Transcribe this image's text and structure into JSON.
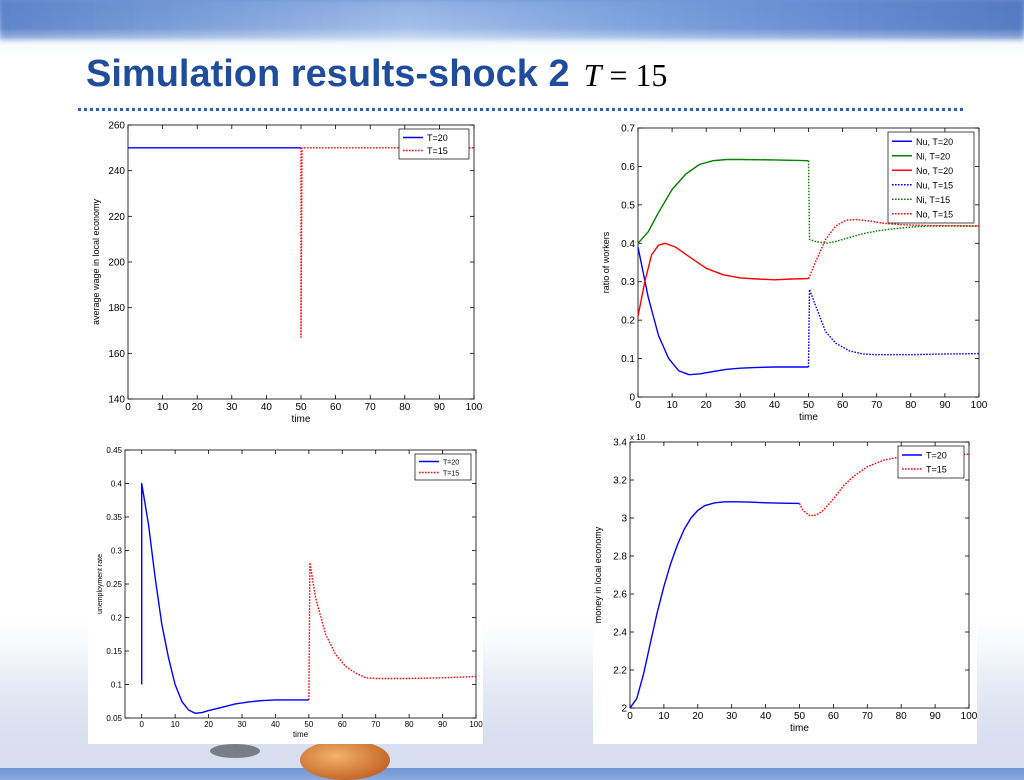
{
  "slide": {
    "title": "Simulation results-shock 2",
    "formula_var": "T",
    "formula_rest": " = 15"
  },
  "colors": {
    "title": "#1f4d9c",
    "blue": "#0000ff",
    "red": "#ff0000",
    "green": "#008000"
  },
  "chart_data": [
    {
      "id": "wage",
      "type": "line",
      "xlabel": "time",
      "ylabel": "average wage in local economy",
      "xlim": [
        0,
        100
      ],
      "ylim": [
        140,
        260
      ],
      "xticks": [
        0,
        10,
        20,
        30,
        40,
        50,
        60,
        70,
        80,
        90,
        100
      ],
      "yticks": [
        140,
        160,
        180,
        200,
        220,
        240,
        260
      ],
      "x_scale": 1,
      "legend_position": "top-right",
      "series": [
        {
          "name": "T=20",
          "color": "#0000ff",
          "dash": false,
          "points": [
            [
              0,
              250
            ],
            [
              50,
              250
            ]
          ]
        },
        {
          "name": "T=15",
          "color": "#ff0000",
          "dash": true,
          "points": [
            [
              50,
              250
            ],
            [
              50,
              167
            ],
            [
              50.3,
              250
            ],
            [
              100,
              250
            ]
          ]
        }
      ]
    },
    {
      "id": "ratios",
      "type": "line",
      "xlabel": "time",
      "ylabel": "ratio of workers",
      "xlim": [
        0,
        100
      ],
      "ylim": [
        0,
        0.7
      ],
      "xticks": [
        0,
        10,
        20,
        30,
        40,
        50,
        60,
        70,
        80,
        90,
        100
      ],
      "yticks": [
        0,
        0.1,
        0.2,
        0.3,
        0.4,
        0.5,
        0.6,
        0.7
      ],
      "x_scale": 1,
      "legend_position": "top-right",
      "series": [
        {
          "name": "Nu, T=20",
          "color": "#0000ff",
          "dash": false,
          "points": [
            [
              0,
              0.39
            ],
            [
              3,
              0.26
            ],
            [
              6,
              0.16
            ],
            [
              9,
              0.1
            ],
            [
              12,
              0.068
            ],
            [
              15,
              0.058
            ],
            [
              18,
              0.06
            ],
            [
              22,
              0.066
            ],
            [
              26,
              0.072
            ],
            [
              30,
              0.075
            ],
            [
              35,
              0.077
            ],
            [
              40,
              0.078
            ],
            [
              50,
              0.078
            ]
          ]
        },
        {
          "name": "Ni, T=20",
          "color": "#008000",
          "dash": false,
          "points": [
            [
              0,
              0.4
            ],
            [
              3,
              0.43
            ],
            [
              6,
              0.48
            ],
            [
              10,
              0.54
            ],
            [
              14,
              0.58
            ],
            [
              18,
              0.605
            ],
            [
              22,
              0.615
            ],
            [
              26,
              0.618
            ],
            [
              30,
              0.618
            ],
            [
              40,
              0.617
            ],
            [
              50,
              0.615
            ]
          ]
        },
        {
          "name": "No, T=20",
          "color": "#ff0000",
          "dash": false,
          "points": [
            [
              0,
              0.21
            ],
            [
              2,
              0.3
            ],
            [
              4,
              0.37
            ],
            [
              6,
              0.395
            ],
            [
              8,
              0.4
            ],
            [
              11,
              0.39
            ],
            [
              15,
              0.365
            ],
            [
              20,
              0.335
            ],
            [
              25,
              0.318
            ],
            [
              30,
              0.31
            ],
            [
              35,
              0.307
            ],
            [
              40,
              0.305
            ],
            [
              45,
              0.307
            ],
            [
              50,
              0.308
            ]
          ]
        },
        {
          "name": "Nu, T=15",
          "color": "#0000ff",
          "dash": true,
          "points": [
            [
              50,
              0.078
            ],
            [
              50.3,
              0.28
            ],
            [
              52,
              0.24
            ],
            [
              55,
              0.17
            ],
            [
              58,
              0.14
            ],
            [
              62,
              0.12
            ],
            [
              66,
              0.112
            ],
            [
              70,
              0.11
            ],
            [
              80,
              0.11
            ],
            [
              90,
              0.112
            ],
            [
              100,
              0.113
            ]
          ]
        },
        {
          "name": "Ni, T=15",
          "color": "#008000",
          "dash": true,
          "points": [
            [
              50,
              0.615
            ],
            [
              50.3,
              0.41
            ],
            [
              52,
              0.405
            ],
            [
              55,
              0.4
            ],
            [
              58,
              0.405
            ],
            [
              62,
              0.415
            ],
            [
              66,
              0.425
            ],
            [
              70,
              0.432
            ],
            [
              75,
              0.438
            ],
            [
              80,
              0.442
            ],
            [
              85,
              0.445
            ],
            [
              90,
              0.445
            ],
            [
              100,
              0.445
            ]
          ]
        },
        {
          "name": "No, T=15",
          "color": "#ff0000",
          "dash": true,
          "points": [
            [
              50,
              0.308
            ],
            [
              52,
              0.35
            ],
            [
              55,
              0.41
            ],
            [
              58,
              0.445
            ],
            [
              61,
              0.46
            ],
            [
              64,
              0.462
            ],
            [
              68,
              0.458
            ],
            [
              72,
              0.452
            ],
            [
              78,
              0.448
            ],
            [
              85,
              0.446
            ],
            [
              100,
              0.445
            ]
          ]
        }
      ]
    },
    {
      "id": "unemployment",
      "type": "line",
      "xlabel": "time",
      "ylabel": "unemployment rate",
      "xlim": [
        -5,
        100
      ],
      "ylim": [
        0.05,
        0.45
      ],
      "xticks": [
        0,
        10,
        20,
        30,
        40,
        50,
        60,
        70,
        80,
        90,
        100
      ],
      "yticks": [
        0.05,
        0.1,
        0.15,
        0.2,
        0.25,
        0.3,
        0.35,
        0.4,
        0.45
      ],
      "x_scale": 1,
      "legend_position": "top-right",
      "series": [
        {
          "name": "T=20",
          "color": "#0000ff",
          "dash": false,
          "points": [
            [
              0,
              0.1
            ],
            [
              0,
              0.4
            ],
            [
              2,
              0.34
            ],
            [
              4,
              0.26
            ],
            [
              6,
              0.19
            ],
            [
              8,
              0.14
            ],
            [
              10,
              0.1
            ],
            [
              12,
              0.075
            ],
            [
              14,
              0.062
            ],
            [
              16,
              0.057
            ],
            [
              18,
              0.058
            ],
            [
              20,
              0.061
            ],
            [
              24,
              0.066
            ],
            [
              28,
              0.071
            ],
            [
              32,
              0.074
            ],
            [
              36,
              0.076
            ],
            [
              40,
              0.077
            ],
            [
              50,
              0.077
            ]
          ]
        },
        {
          "name": "T=15",
          "color": "#ff0000",
          "dash": true,
          "points": [
            [
              50,
              0.077
            ],
            [
              50.3,
              0.282
            ],
            [
              52,
              0.23
            ],
            [
              55,
              0.175
            ],
            [
              58,
              0.145
            ],
            [
              61,
              0.127
            ],
            [
              64,
              0.117
            ],
            [
              67,
              0.11
            ],
            [
              70,
              0.109
            ],
            [
              80,
              0.109
            ],
            [
              90,
              0.11
            ],
            [
              100,
              0.112
            ]
          ]
        }
      ]
    },
    {
      "id": "money",
      "type": "line",
      "xlabel": "time",
      "ylabel": "money in local economy",
      "exponent_label": "x 10",
      "xlim": [
        0,
        100
      ],
      "ylim": [
        2,
        3.4
      ],
      "xticks": [
        0,
        10,
        20,
        30,
        40,
        50,
        60,
        70,
        80,
        90,
        100
      ],
      "yticks": [
        2,
        2.2,
        2.4,
        2.6,
        2.8,
        3,
        3.2,
        3.4
      ],
      "x_scale": 1,
      "legend_position": "top-right",
      "series": [
        {
          "name": "T=20",
          "color": "#0000ff",
          "dash": false,
          "points": [
            [
              0,
              2.0
            ],
            [
              2,
              2.05
            ],
            [
              4,
              2.18
            ],
            [
              6,
              2.34
            ],
            [
              8,
              2.5
            ],
            [
              10,
              2.64
            ],
            [
              12,
              2.76
            ],
            [
              14,
              2.86
            ],
            [
              16,
              2.94
            ],
            [
              18,
              3.0
            ],
            [
              20,
              3.04
            ],
            [
              22,
              3.065
            ],
            [
              25,
              3.08
            ],
            [
              28,
              3.085
            ],
            [
              32,
              3.085
            ],
            [
              36,
              3.083
            ],
            [
              40,
              3.08
            ],
            [
              45,
              3.078
            ],
            [
              50,
              3.077
            ]
          ]
        },
        {
          "name": "T=15",
          "color": "#ff0000",
          "dash": true,
          "points": [
            [
              50,
              3.077
            ],
            [
              51,
              3.04
            ],
            [
              53,
              3.012
            ],
            [
              55,
              3.015
            ],
            [
              57,
              3.04
            ],
            [
              60,
              3.1
            ],
            [
              63,
              3.17
            ],
            [
              66,
              3.22
            ],
            [
              70,
              3.27
            ],
            [
              75,
              3.305
            ],
            [
              80,
              3.322
            ],
            [
              85,
              3.33
            ],
            [
              90,
              3.333
            ],
            [
              100,
              3.335
            ]
          ]
        }
      ]
    }
  ]
}
